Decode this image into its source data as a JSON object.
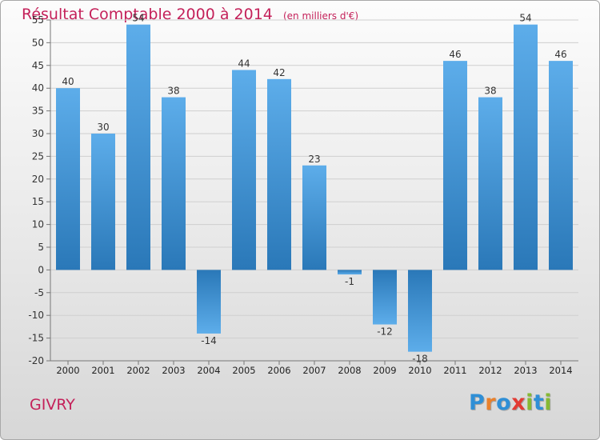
{
  "title": "Résultat Comptable 2000 à 2014",
  "unit_note": "(en milliers d'€)",
  "city": "GIVRY",
  "logo": {
    "text": "Proxiti",
    "letters": [
      "P",
      "r",
      "o",
      "x",
      "i",
      "t",
      "i"
    ],
    "colors": [
      "#2f8fd6",
      "#e9812c",
      "#2f8fd6",
      "#e23b34",
      "#86b933",
      "#2f8fd6",
      "#86b933"
    ]
  },
  "colors": {
    "bar_top": "#5dadea",
    "bar_bottom": "#2a78b8",
    "title": "#c4215a"
  },
  "chart_data": {
    "type": "bar",
    "categories": [
      "2000",
      "2001",
      "2002",
      "2003",
      "2004",
      "2005",
      "2006",
      "2007",
      "2008",
      "2009",
      "2010",
      "2011",
      "2012",
      "2013",
      "2014"
    ],
    "values": [
      40,
      30,
      54,
      38,
      -14,
      44,
      42,
      23,
      -1,
      -12,
      -18,
      46,
      38,
      54,
      46
    ],
    "ylim": [
      -20,
      55
    ],
    "yticks": [
      -20,
      -15,
      -10,
      -5,
      0,
      5,
      10,
      15,
      20,
      25,
      30,
      35,
      40,
      45,
      50,
      55
    ],
    "grid": true,
    "title": "Résultat Comptable 2000 à 2014",
    "xlabel": "",
    "ylabel": ""
  }
}
